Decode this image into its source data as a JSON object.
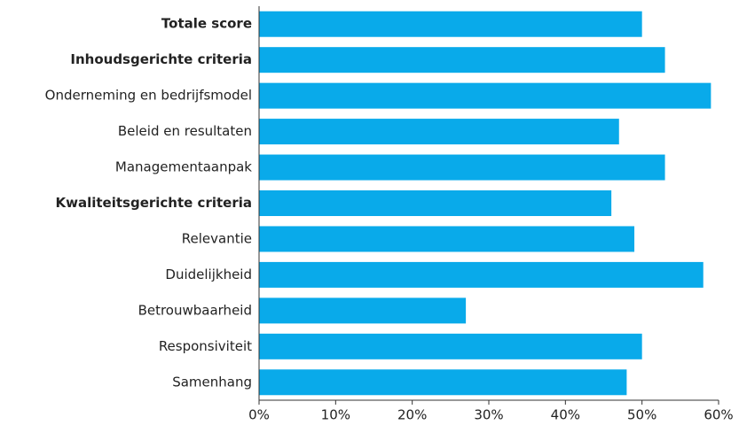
{
  "chart_data": {
    "type": "barh",
    "categories": [
      "Totale score",
      "Inhoudsgerichte criteria",
      "Onderneming en bedrijfsmodel",
      "Beleid en resultaten",
      "Managementaanpak",
      "Kwaliteitsgerichte criteria",
      "Relevantie",
      "Duidelijkheid",
      "Betrouwbaarheid",
      "Responsiviteit",
      "Samenhang"
    ],
    "values": [
      50,
      53,
      59,
      47,
      53,
      46,
      49,
      58,
      27,
      50,
      48
    ],
    "bold": [
      0,
      1,
      5
    ],
    "color": "#09aaea",
    "xlim": [
      0,
      60
    ],
    "xticks": [
      {
        "value": 0,
        "label": "0%"
      },
      {
        "value": 10,
        "label": "10%"
      },
      {
        "value": 20,
        "label": "20%"
      },
      {
        "value": 30,
        "label": "30%"
      },
      {
        "value": 40,
        "label": "40%"
      },
      {
        "value": 50,
        "label": "50%"
      },
      {
        "value": 60,
        "label": "60%"
      }
    ]
  }
}
